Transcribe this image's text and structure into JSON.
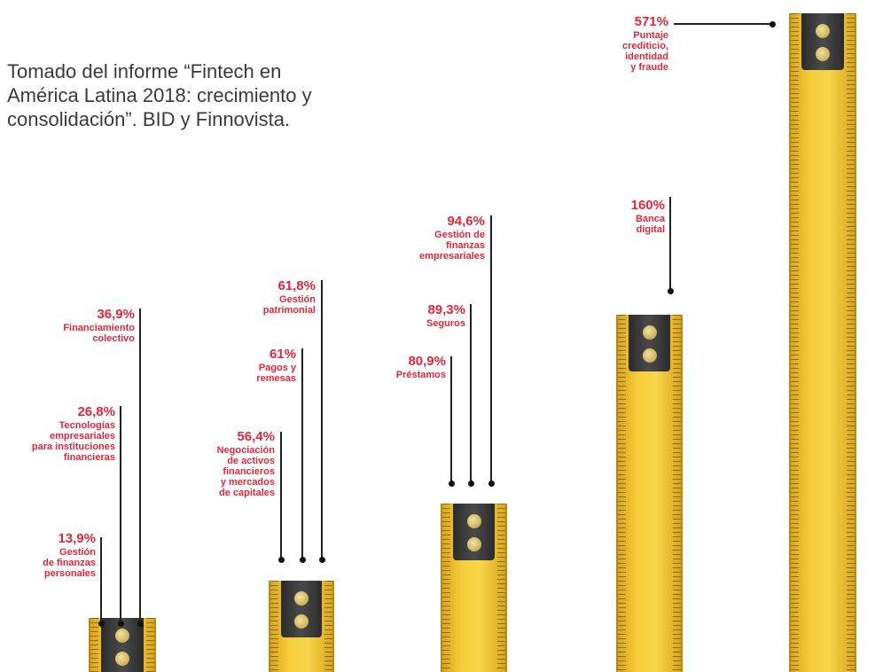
{
  "note": [
    "Tomado del informe “Fintech en",
    "América Latina 2018: crecimiento y",
    "consolidación”. BID y Finnovista."
  ],
  "items": [
    {
      "value": "13,9%",
      "label": [
        "Gestión",
        "de finanzas",
        "personales"
      ]
    },
    {
      "value": "26,8%",
      "label": [
        "Tecnologías",
        "empresariales",
        "para instituciones",
        "financieras"
      ]
    },
    {
      "value": "36,9%",
      "label": [
        "Financiamiento",
        "colectivo"
      ]
    },
    {
      "value": "56,4%",
      "label": [
        "Negociación",
        "de activos",
        "financieros",
        "y mercados",
        "de capitales"
      ]
    },
    {
      "value": "61%",
      "label": [
        "Pagos y",
        "remesas"
      ]
    },
    {
      "value": "61,8%",
      "label": [
        "Gestión",
        "patrimonial"
      ]
    },
    {
      "value": "80,9%",
      "label": [
        "Préstamos"
      ]
    },
    {
      "value": "89,3%",
      "label": [
        "Seguros"
      ]
    },
    {
      "value": "94,6%",
      "label": [
        "Gestión de",
        "finanzas",
        "empresariales"
      ]
    },
    {
      "value": "160%",
      "label": [
        "Banca",
        "digital"
      ]
    },
    {
      "value": "571%",
      "label": [
        "Puntaje",
        "crediticio,",
        "identidad",
        "y fraude"
      ]
    }
  ]
}
